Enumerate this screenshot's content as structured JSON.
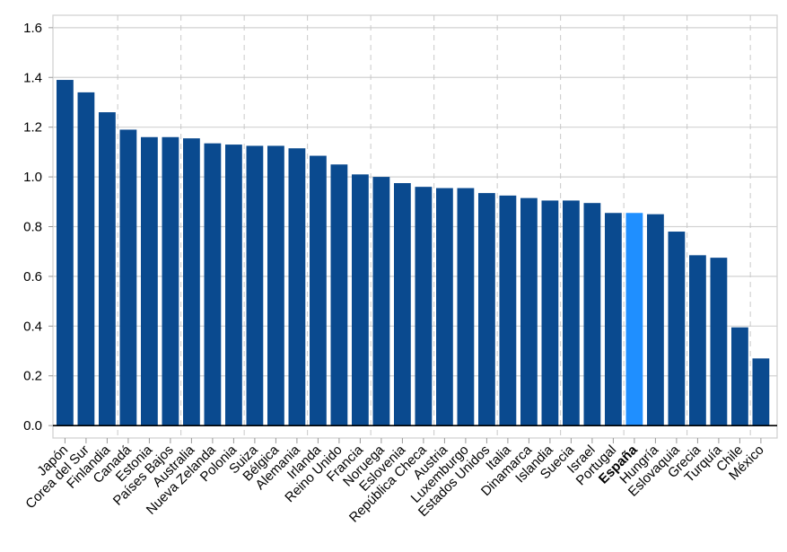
{
  "chart_data": {
    "type": "bar",
    "title": "",
    "xlabel": "",
    "ylabel": "",
    "ylim": [
      -0.05,
      1.65
    ],
    "yticks": [
      "0.0",
      "0.2",
      "0.4",
      "0.6",
      "0.8",
      "1.0",
      "1.2",
      "1.4",
      "1.6"
    ],
    "ytick_values": [
      0.0,
      0.2,
      0.4,
      0.6,
      0.8,
      1.0,
      1.2,
      1.4,
      1.6
    ],
    "bar_color": "#0a4a8f",
    "highlight_color": "#1f8fff",
    "highlight_category": "España",
    "categories": [
      "Japón",
      "Corea del Sur",
      "Finlandia",
      "Canadá",
      "Estonia",
      "Países Bajos",
      "Australia",
      "Nueva Zelanda",
      "Polonia",
      "Suiza",
      "Bélgica",
      "Alemania",
      "Irlanda",
      "Reino Unido",
      "Francia",
      "Noruega",
      "Eslovenia",
      "República Checa",
      "Austria",
      "Luxemburgo",
      "Estados Unidos",
      "Italia",
      "Dinamarca",
      "Islandia",
      "Suecia",
      "Israel",
      "Portugal",
      "España",
      "Hungría",
      "Eslovaquia",
      "Grecia",
      "Turquía",
      "Chile",
      "México"
    ],
    "values": [
      1.39,
      1.34,
      1.26,
      1.19,
      1.16,
      1.16,
      1.155,
      1.135,
      1.13,
      1.125,
      1.125,
      1.115,
      1.085,
      1.05,
      1.01,
      1.0,
      0.975,
      0.96,
      0.955,
      0.955,
      0.935,
      0.925,
      0.915,
      0.905,
      0.905,
      0.895,
      0.855,
      0.855,
      0.85,
      0.78,
      0.685,
      0.675,
      0.395,
      0.27
    ]
  }
}
